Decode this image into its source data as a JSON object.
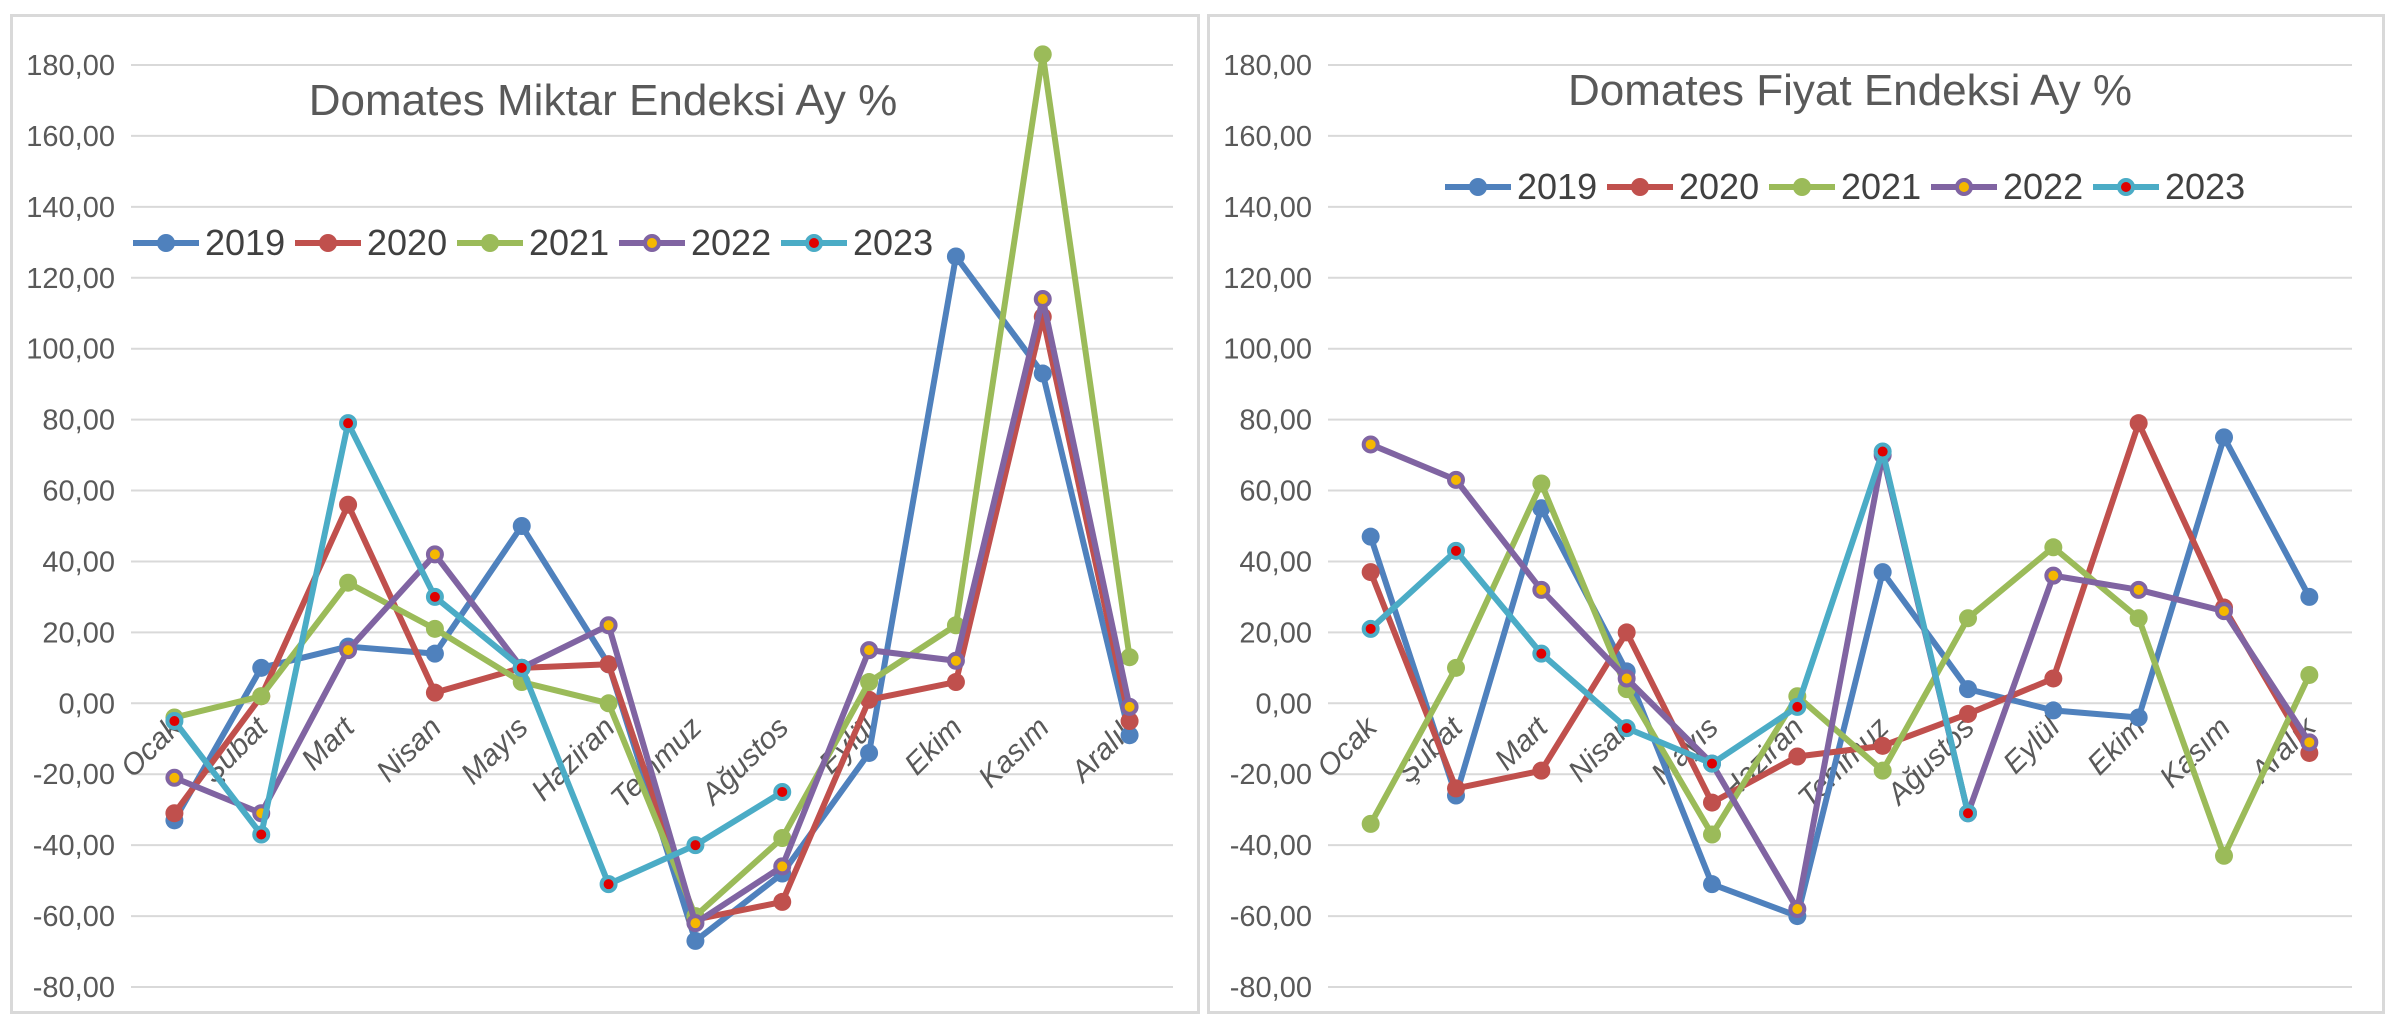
{
  "chart_data": [
    {
      "type": "line",
      "title": "Domates Miktar Endeksi Ay  %",
      "xlabel": "",
      "ylabel": "",
      "ylim": [
        -80,
        180
      ],
      "yticks": [
        "-80,00",
        "-60,00",
        "-40,00",
        "-20,00",
        "0,00",
        "20,00",
        "40,00",
        "60,00",
        "80,00",
        "100,00",
        "120,00",
        "140,00",
        "160,00",
        "180,00"
      ],
      "grid": true,
      "legend": "top-left",
      "categories": [
        "Ocak",
        "Şubat",
        "Mart",
        "Nisan",
        "Mayıs",
        "Haziran",
        "Temmuz",
        "Ağustos",
        "Eylül",
        "Ekim",
        "Kasım",
        "Aralık"
      ],
      "series": [
        {
          "name": "2019",
          "color": "#4f81bd",
          "marker": "#4f81bd",
          "values": [
            -33,
            10,
            16,
            14,
            50,
            11,
            -67,
            -48,
            -14,
            126,
            93,
            -9
          ]
        },
        {
          "name": "2020",
          "color": "#c0504d",
          "marker": "#c0504d",
          "values": [
            -31,
            2,
            56,
            3,
            10,
            11,
            -61,
            -56,
            1,
            6,
            109,
            -5
          ]
        },
        {
          "name": "2021",
          "color": "#9bbb59",
          "marker": "#9bbb59",
          "values": [
            -4,
            2,
            34,
            21,
            6,
            0,
            -60,
            -38,
            6,
            22,
            183,
            13
          ]
        },
        {
          "name": "2022",
          "color": "#8064a2",
          "marker": "#f5b800",
          "values": [
            -21,
            -31,
            15,
            42,
            10,
            22,
            -62,
            -46,
            15,
            12,
            114,
            -1
          ]
        },
        {
          "name": "2023",
          "color": "#4bacc6",
          "marker": "#e00000",
          "values": [
            -5,
            -37,
            79,
            30,
            10,
            -51,
            -40,
            -25,
            null,
            null,
            null,
            null
          ]
        }
      ]
    },
    {
      "type": "line",
      "title": "Domates Fiyat Endeksi Ay %",
      "xlabel": "",
      "ylabel": "",
      "ylim": [
        -80,
        180
      ],
      "yticks": [
        "-80,00",
        "-60,00",
        "-40,00",
        "-20,00",
        "0,00",
        "20,00",
        "40,00",
        "60,00",
        "80,00",
        "100,00",
        "120,00",
        "140,00",
        "160,00",
        "180,00"
      ],
      "grid": true,
      "legend": "top",
      "categories": [
        "Ocak",
        "Şubat",
        "Mart",
        "Nisan",
        "Mayıs",
        "Haziran",
        "Temmuz",
        "Ağustos",
        "Eylül",
        "Ekim",
        "Kasım",
        "Aralık"
      ],
      "series": [
        {
          "name": "2019",
          "color": "#4f81bd",
          "marker": "#4f81bd",
          "values": [
            47,
            -26,
            55,
            9,
            -51,
            -60,
            37,
            4,
            -2,
            -4,
            75,
            30
          ]
        },
        {
          "name": "2020",
          "color": "#c0504d",
          "marker": "#c0504d",
          "values": [
            37,
            -24,
            -19,
            20,
            -28,
            -15,
            -12,
            -3,
            7,
            79,
            27,
            -14
          ]
        },
        {
          "name": "2021",
          "color": "#9bbb59",
          "marker": "#9bbb59",
          "values": [
            -34,
            10,
            62,
            4,
            -37,
            2,
            -19,
            24,
            44,
            24,
            -43,
            8
          ]
        },
        {
          "name": "2022",
          "color": "#8064a2",
          "marker": "#f5b800",
          "values": [
            73,
            63,
            32,
            7,
            -17,
            -58,
            70,
            -31,
            36,
            32,
            26,
            -11
          ]
        },
        {
          "name": "2023",
          "color": "#4bacc6",
          "marker": "#e00000",
          "values": [
            21,
            43,
            14,
            -7,
            -17,
            -1,
            71,
            -31,
            null,
            null,
            null,
            null
          ]
        }
      ]
    }
  ]
}
